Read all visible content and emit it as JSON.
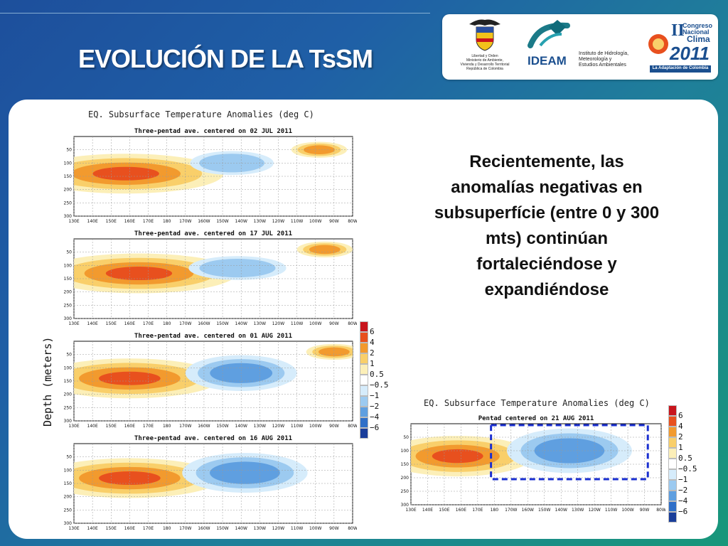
{
  "slide": {
    "title": "EVOLUCIÓN DE LA TsSM",
    "body_text": "Recientemente, las anomalías negativas en subsuperfície (entre 0 y 300 mts) continúan fortaleciéndose y expandiéndose"
  },
  "logos": {
    "ministry_text": "Libertad y Orden\nMinisterio de Ambiente,\nVivienda y Desarrollo Territorial\nRepública de Colombia",
    "ideam_name": "IDEAM",
    "ideam_subtitle": "Instituto de Hidrología,\nMeteorología y\nEstudios Ambientales",
    "congress_line1": "Congreso",
    "congress_line2": "Nacional",
    "congress_line3": "Clima",
    "congress_roman": "II",
    "congress_year": "2011",
    "congress_tagline": "La Adaptación de Colombia"
  },
  "figure_left": {
    "title": "EQ. Subsurface Temperature Anomalies (deg C)",
    "ylabel": "Depth (meters)"
  },
  "figure_right": {
    "title": "EQ. Subsurface Temperature Anomalies (deg C)"
  },
  "chart_data": [
    {
      "type": "heatmap",
      "title": "Three-pentad ave. centered on 02 JUL 2011",
      "x_ticks": [
        "130E",
        "140E",
        "150E",
        "160E",
        "170E",
        "180",
        "170W",
        "160W",
        "150W",
        "140W",
        "130W",
        "120W",
        "110W",
        "100W",
        "90W",
        "80W"
      ],
      "y_ticks": [
        "50",
        "100",
        "150",
        "200",
        "250",
        "300"
      ],
      "ylim": [
        0,
        300
      ],
      "anomalies": [
        {
          "lon": 158,
          "depth": 140,
          "value": 4,
          "w": 0.7,
          "h": 0.5
        },
        {
          "lon": 215,
          "depth": 100,
          "value": -1.2,
          "w": 0.3,
          "h": 0.3
        },
        {
          "lon": 262,
          "depth": 50,
          "value": 1.5,
          "w": 0.2,
          "h": 0.2
        }
      ]
    },
    {
      "type": "heatmap",
      "title": "Three-pentad ave. centered on 17 JUL 2011",
      "x_ticks": [
        "130E",
        "140E",
        "150E",
        "160E",
        "170E",
        "180",
        "170W",
        "160W",
        "150W",
        "140W",
        "130W",
        "120W",
        "110W",
        "100W",
        "90W",
        "80W"
      ],
      "y_ticks": [
        "50",
        "100",
        "150",
        "200",
        "250",
        "300"
      ],
      "ylim": [
        0,
        300
      ],
      "anomalies": [
        {
          "lon": 165,
          "depth": 130,
          "value": 4,
          "w": 0.7,
          "h": 0.5
        },
        {
          "lon": 218,
          "depth": 110,
          "value": -1.2,
          "w": 0.35,
          "h": 0.3
        },
        {
          "lon": 265,
          "depth": 40,
          "value": 1.5,
          "w": 0.2,
          "h": 0.2
        }
      ]
    },
    {
      "type": "heatmap",
      "title": "Three-pentad ave. centered on 01 AUG 2011",
      "x_ticks": [
        "130E",
        "140E",
        "150E",
        "160E",
        "170E",
        "180",
        "170W",
        "160W",
        "150W",
        "140W",
        "130W",
        "120W",
        "110W",
        "100W",
        "90W",
        "80W"
      ],
      "y_ticks": [
        "50",
        "100",
        "150",
        "200",
        "250",
        "300"
      ],
      "ylim": [
        0,
        300
      ],
      "anomalies": [
        {
          "lon": 160,
          "depth": 140,
          "value": 4,
          "w": 0.65,
          "h": 0.5
        },
        {
          "lon": 220,
          "depth": 120,
          "value": -2,
          "w": 0.4,
          "h": 0.45
        },
        {
          "lon": 270,
          "depth": 40,
          "value": 1.5,
          "w": 0.2,
          "h": 0.2
        }
      ]
    },
    {
      "type": "heatmap",
      "title": "Three-pentad ave. centered on 16 AUG 2011",
      "x_ticks": [
        "130E",
        "140E",
        "150E",
        "160E",
        "170E",
        "180",
        "170W",
        "160W",
        "150W",
        "140W",
        "130W",
        "120W",
        "110W",
        "100W",
        "90W",
        "80W"
      ],
      "y_ticks": [
        "50",
        "100",
        "150",
        "200",
        "250",
        "300"
      ],
      "ylim": [
        0,
        300
      ],
      "anomalies": [
        {
          "lon": 160,
          "depth": 130,
          "value": 4,
          "w": 0.65,
          "h": 0.5
        },
        {
          "lon": 222,
          "depth": 110,
          "value": -2.5,
          "w": 0.45,
          "h": 0.5
        }
      ]
    },
    {
      "type": "heatmap",
      "title": "Pentad centered on 21 AUG 2011",
      "x_ticks": [
        "130E",
        "140E",
        "150E",
        "160E",
        "170E",
        "180",
        "170W",
        "160W",
        "150W",
        "140W",
        "130W",
        "120W",
        "110W",
        "100W",
        "90W",
        "80W"
      ],
      "y_ticks": [
        "50",
        "100",
        "150",
        "200",
        "250",
        "300"
      ],
      "ylim": [
        0,
        300
      ],
      "anomalies": [
        {
          "lon": 158,
          "depth": 120,
          "value": 4,
          "w": 0.6,
          "h": 0.5
        },
        {
          "lon": 225,
          "depth": 100,
          "value": -2.5,
          "w": 0.5,
          "h": 0.55
        }
      ],
      "highlight_box": {
        "lon_range": [
          178,
          272
        ],
        "depth_range": [
          0,
          200
        ]
      }
    }
  ],
  "legend": {
    "labels": [
      "6",
      "4",
      "2",
      "1",
      "0.5",
      "−0.5",
      "−1",
      "−2",
      "−4",
      "−6"
    ],
    "colors": [
      "#c8141c",
      "#e8501e",
      "#f29a2e",
      "#f9cf6a",
      "#fcefb8",
      "#ffffff",
      "#d6ecfb",
      "#9ccaf0",
      "#5f9fe0",
      "#2f6fc8",
      "#1a3e9a"
    ]
  }
}
